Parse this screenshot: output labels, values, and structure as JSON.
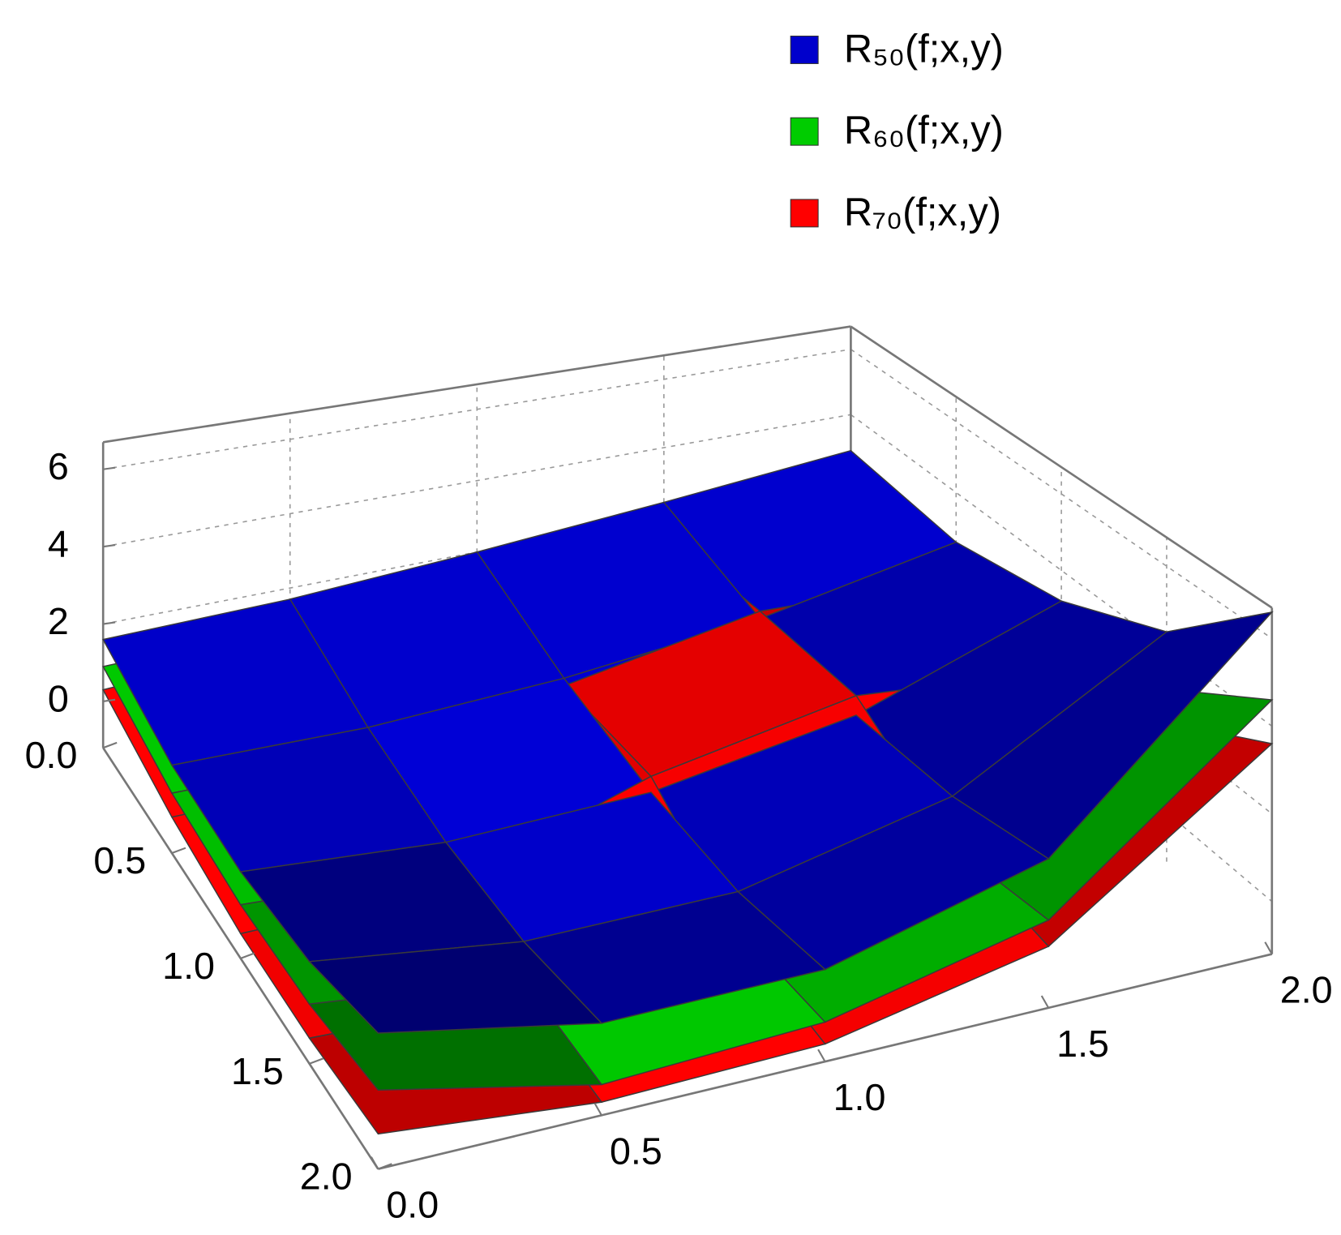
{
  "chart_data": {
    "type": "surface3d",
    "x": [
      0,
      0.5,
      1,
      1.5,
      2
    ],
    "y": [
      0,
      0.5,
      1,
      1.5,
      2
    ],
    "xlim": [
      0,
      2
    ],
    "ylim": [
      0,
      2
    ],
    "zlim": [
      -1.2,
      6.7
    ],
    "xticks": [
      {
        "value": 0,
        "label": "0.0"
      },
      {
        "value": 0.5,
        "label": "0.5"
      },
      {
        "value": 1,
        "label": "1.0"
      },
      {
        "value": 1.5,
        "label": "1.5"
      },
      {
        "value": 2,
        "label": "2.0"
      }
    ],
    "yticks": [
      {
        "value": 0,
        "label": "0.0"
      },
      {
        "value": 0.5,
        "label": "0.5"
      },
      {
        "value": 1,
        "label": "1.0"
      },
      {
        "value": 1.5,
        "label": "1.5"
      },
      {
        "value": 2,
        "label": "2.0"
      }
    ],
    "zticks": [
      0,
      2,
      4,
      6
    ],
    "grid": true,
    "legend": "top-right",
    "series": [
      {
        "name": "R₅₀(f;x,y)",
        "color": "#0000cc",
        "z": [
          [
            1.6,
            1.7,
            2.0,
            2.4,
            2.9
          ],
          [
            1.0,
            0.9,
            1.1,
            1.6,
            2.6
          ],
          [
            0.9,
            0.5,
            0.6,
            1.4,
            3.2
          ],
          [
            1.2,
            0.5,
            0.5,
            1.6,
            4.4
          ],
          [
            1.9,
            0.9,
            0.9,
            2.2,
            6.6
          ]
        ]
      },
      {
        "name": "R₆₀(f;x,y)",
        "color": "#00cc00",
        "z": [
          [
            0.9,
            1.0,
            1.3,
            1.8,
            2.4
          ],
          [
            0.3,
            0.2,
            0.4,
            0.9,
            1.8
          ],
          [
            0.1,
            -0.2,
            -0.1,
            0.5,
            2.0
          ],
          [
            0.2,
            -0.4,
            -0.4,
            0.4,
            3.0
          ],
          [
            0.6,
            -0.5,
            -0.3,
            0.8,
            4.6
          ]
        ]
      },
      {
        "name": "R₇₀(f;x,y)",
        "color": "#ff0000",
        "z": [
          [
            0.3,
            0.5,
            0.9,
            1.5,
            2.2
          ],
          [
            -0.3,
            -0.3,
            0.9,
            1.8,
            1.6
          ],
          [
            -0.6,
            -0.6,
            1.0,
            1.9,
            1.4
          ],
          [
            -0.6,
            -0.8,
            -0.5,
            0.5,
            2.2
          ],
          [
            -0.4,
            -0.9,
            -0.8,
            0.2,
            3.6
          ]
        ]
      }
    ]
  }
}
